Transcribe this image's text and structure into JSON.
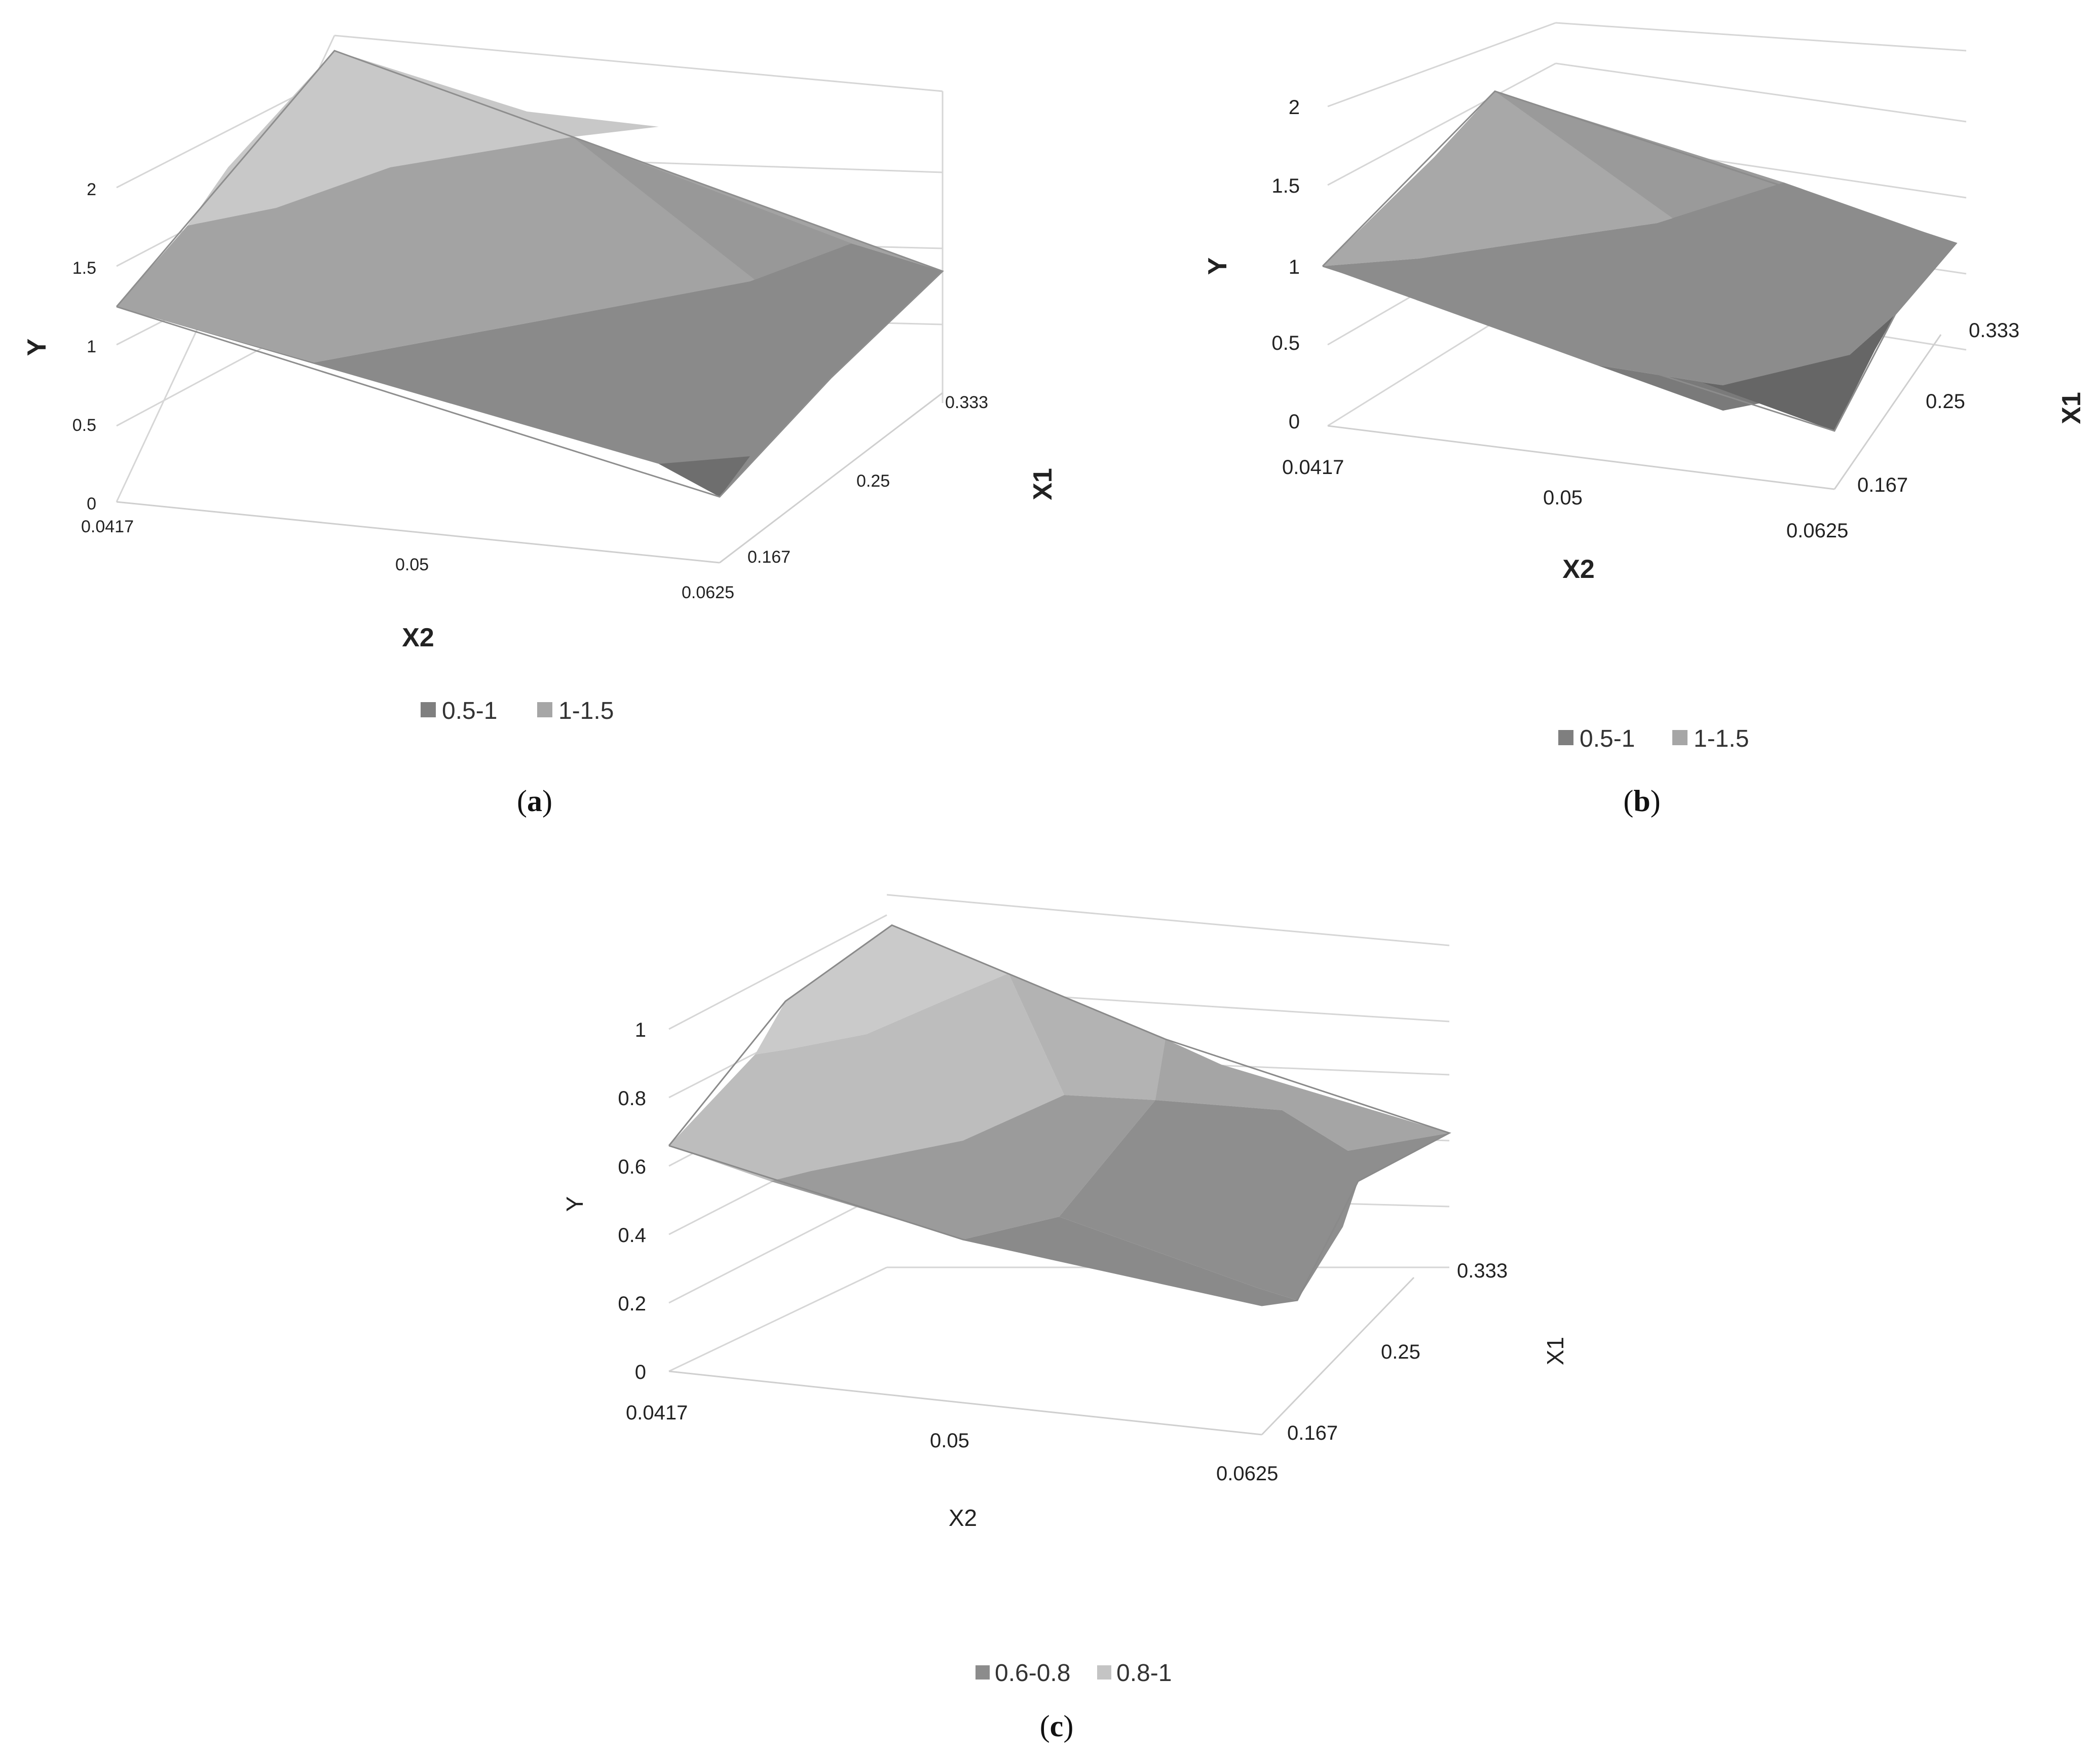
{
  "chart_data": [
    {
      "panel": "a",
      "type": "surface",
      "xlabel": "X2",
      "ylabel": "Y",
      "zlabel": "X1",
      "x_ticks": [
        "0.0417",
        "0.05",
        "0.0625"
      ],
      "depth_ticks": [
        "0.167",
        "0.25",
        "0.333"
      ],
      "y_ticks": [
        "0",
        "0.5",
        "1",
        "1.5",
        "2"
      ],
      "legend": [
        "0.5-1",
        "1-1.5"
      ],
      "legend_colors": [
        "#7f7f7f",
        "#a6a6a6"
      ],
      "grid": true,
      "legend_position": "bottom"
    },
    {
      "panel": "b",
      "type": "surface",
      "xlabel": "X2",
      "ylabel": "Y",
      "zlabel": "X1",
      "x_ticks": [
        "0.0417",
        "0.05",
        "0.0625"
      ],
      "depth_ticks": [
        "0.167",
        "0.25",
        "0.333"
      ],
      "y_ticks": [
        "0",
        "0.5",
        "1",
        "1.5",
        "2"
      ],
      "legend": [
        "0.5-1",
        "1-1.5"
      ],
      "legend_colors": [
        "#7f7f7f",
        "#a6a6a6"
      ],
      "grid": true,
      "legend_position": "bottom"
    },
    {
      "panel": "c",
      "type": "surface",
      "xlabel": "X2",
      "ylabel": "Y",
      "zlabel": "X1",
      "x_ticks": [
        "0.0417",
        "0.05",
        "0.0625"
      ],
      "depth_ticks": [
        "0.167",
        "0.25",
        "0.333"
      ],
      "y_ticks": [
        "0",
        "0.2",
        "0.4",
        "0.6",
        "0.8",
        "1"
      ],
      "legend": [
        "0.6-0.8",
        "0.8-1"
      ],
      "legend_colors": [
        "#8c8c8c",
        "#c4c4c4"
      ],
      "grid": true,
      "legend_position": "bottom"
    }
  ],
  "captions": {
    "a": {
      "open": "(",
      "letter": "a",
      "close": ")"
    },
    "b": {
      "open": "(",
      "letter": "b",
      "close": ")"
    },
    "c": {
      "open": "(",
      "letter": "c",
      "close": ")"
    }
  }
}
